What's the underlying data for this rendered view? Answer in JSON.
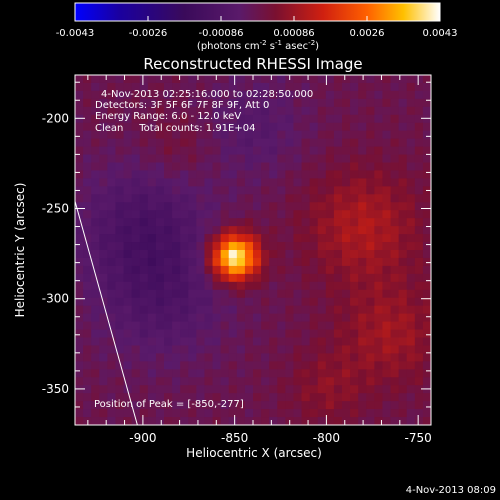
{
  "colorbar": {
    "min_label": "-0.0043",
    "tick_labels": [
      "-0.0043",
      "-0.0026",
      "-0.00086",
      "0.00086",
      "0.0026",
      "0.0043"
    ],
    "unit_text": "(photons cm",
    "unit_exp1": "-2",
    "unit_mid": " s",
    "unit_exp2": "-1",
    "unit_tail": " asec",
    "unit_exp3": "-2",
    "unit_close": ")"
  },
  "title": "Reconstructed RHESSI Image",
  "annotations": {
    "line1": "4-Nov-2013 02:25:16.000 to 02:28:50.000",
    "line2": "Detectors: 3F 5F 6F 7F 8F 9F, Att 0",
    "line3": "Energy Range: 6.0 - 12.0 keV",
    "line4": "Clean     Total counts: 1.91E+04",
    "peak": "Position of Peak = [-850,-277]"
  },
  "footer": {
    "timestamp": "4-Nov-2013 08:09"
  },
  "chart_data": {
    "type": "heatmap",
    "title": "Reconstructed RHESSI Image",
    "xlabel": "Heliocentric X (arcsec)",
    "ylabel": "Heliocentric Y (arcsec)",
    "xlim": [
      -937,
      -743
    ],
    "ylim": [
      -370,
      -176
    ],
    "x_ticks": [
      "-900",
      "-850",
      "-800",
      "-750"
    ],
    "x_tick_values": [
      -900,
      -850,
      -800,
      -750
    ],
    "y_ticks": [
      "-200",
      "-250",
      "-300",
      "-350"
    ],
    "y_tick_values": [
      -200,
      -250,
      -300,
      -350
    ],
    "color_range": [
      -0.0043,
      0.0043
    ],
    "colormap_stops": [
      "#0000ff",
      "#1a0080",
      "#330066",
      "#5a1a8a",
      "#8b1a1a",
      "#c02010",
      "#ff3300",
      "#ff8800",
      "#ffd000",
      "#ffffff"
    ],
    "peak_position": [
      -850,
      -277
    ],
    "peak_value": 0.0043,
    "limb_line": {
      "from": [
        -937,
        -246
      ],
      "to": [
        -903,
        -370
      ]
    },
    "sources": [
      {
        "x": -850,
        "y": -277,
        "amplitude": 0.0043,
        "sigma": 9
      },
      {
        "x": -780,
        "y": -260,
        "amplitude": 0.0011,
        "sigma": 22
      },
      {
        "x": -765,
        "y": -320,
        "amplitude": 0.0009,
        "sigma": 20
      },
      {
        "x": -800,
        "y": -350,
        "amplitude": 0.0006,
        "sigma": 15
      },
      {
        "x": -880,
        "y": -215,
        "amplitude": 0.0004,
        "sigma": 14
      },
      {
        "x": -900,
        "y": -260,
        "amplitude": -0.001,
        "sigma": 25
      },
      {
        "x": -890,
        "y": -300,
        "amplitude": -0.0008,
        "sigma": 25
      },
      {
        "x": -840,
        "y": -205,
        "amplitude": -0.0006,
        "sigma": 20
      }
    ]
  }
}
